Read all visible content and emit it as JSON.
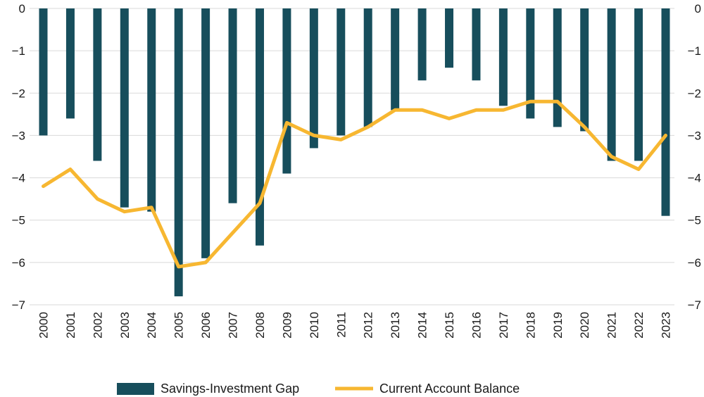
{
  "chart_data": {
    "type": "bar",
    "categories": [
      "2000",
      "2001",
      "2002",
      "2003",
      "2004",
      "2005",
      "2006",
      "2007",
      "2008",
      "2009",
      "2010",
      "2011",
      "2012",
      "2013",
      "2014",
      "2015",
      "2016",
      "2017",
      "2018",
      "2019",
      "2020",
      "2021",
      "2022",
      "2023"
    ],
    "series": [
      {
        "name": "Savings-Investment Gap",
        "type": "bar",
        "color": "#174e5c",
        "values": [
          -3.0,
          -2.6,
          -3.6,
          -4.7,
          -4.8,
          -6.8,
          -5.9,
          -4.6,
          -5.6,
          -3.9,
          -3.3,
          -3.0,
          -2.8,
          -2.4,
          -1.7,
          -1.4,
          -1.7,
          -2.3,
          -2.6,
          -2.8,
          -2.9,
          -3.6,
          -3.6,
          -4.9
        ]
      },
      {
        "name": "Current Account Balance",
        "type": "line",
        "color": "#f7b731",
        "values": [
          -4.2,
          -3.8,
          -4.5,
          -4.8,
          -4.7,
          -6.1,
          -6.0,
          -5.3,
          -4.6,
          -2.7,
          -3.0,
          -3.1,
          -2.8,
          -2.4,
          -2.4,
          -2.6,
          -2.4,
          -2.4,
          -2.2,
          -2.2,
          -2.8,
          -3.5,
          -3.8,
          -3.0
        ]
      }
    ],
    "y_ticks": [
      "0",
      "−1",
      "−2",
      "−3",
      "−4",
      "−5",
      "−6",
      "−7"
    ],
    "ylim": [
      -7,
      0
    ],
    "grid": true,
    "legend_position": "bottom-center",
    "xlabel": "",
    "ylabel": "",
    "title": ""
  }
}
